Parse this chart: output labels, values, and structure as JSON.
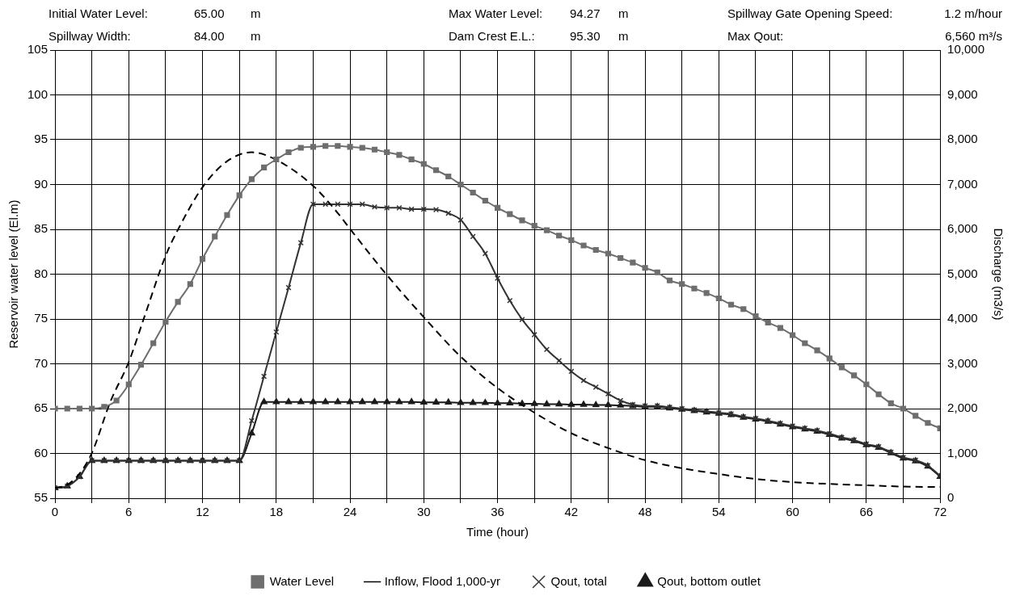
{
  "chart_data": {
    "type": "line",
    "xlabel": "Time (hour)",
    "ylabel": "Reservoir water level (El.m)",
    "y2label": "Discharge (m3/s)",
    "annotations": [
      "Initial Water Level:",
      "65.00",
      "m",
      "Max Water Level:",
      "94.27",
      "m",
      "Spillway Gate Opening Speed:",
      "1.2 m/hour",
      "Spillway Width:",
      "84.00",
      "m",
      "Dam Crest E.L.:",
      "95.30",
      "m",
      "Max Qout:",
      "6,560 m³/s"
    ],
    "x": [
      0,
      1,
      2,
      3,
      4,
      5,
      6,
      7,
      8,
      9,
      10,
      11,
      12,
      13,
      14,
      15,
      16,
      17,
      18,
      19,
      20,
      21,
      22,
      23,
      24,
      25,
      26,
      27,
      28,
      29,
      30,
      31,
      32,
      33,
      34,
      35,
      36,
      37,
      38,
      39,
      40,
      41,
      42,
      43,
      44,
      45,
      46,
      47,
      48,
      49,
      50,
      51,
      52,
      53,
      54,
      55,
      56,
      57,
      58,
      59,
      60,
      61,
      62,
      63,
      64,
      65,
      66,
      67,
      68,
      69,
      70,
      71,
      72
    ],
    "series": [
      {
        "name": "Water Level",
        "color": "#6e6e6e",
        "marker": "square",
        "line_style": "solid",
        "values": [
          65,
          65,
          65,
          65,
          65.2,
          65.9,
          67.7,
          69.9,
          72.3,
          74.7,
          76.9,
          78.9,
          81.7,
          84.2,
          86.6,
          88.8,
          90.6,
          91.9,
          92.8,
          93.6,
          94.1,
          94.2,
          94.3,
          94.3,
          94.2,
          94.1,
          93.9,
          93.6,
          93.3,
          92.8,
          92.3,
          91.6,
          90.9,
          90,
          89.1,
          88.2,
          87.4,
          86.7,
          86,
          85.4,
          84.9,
          84.3,
          83.8,
          83.2,
          82.7,
          82.3,
          81.8,
          81.3,
          80.7,
          80.2,
          79.3,
          78.9,
          78.4,
          77.9,
          77.3,
          76.6,
          76.1,
          75.3,
          74.6,
          74,
          73.2,
          72.3,
          71.5,
          70.6,
          69.6,
          68.7,
          67.7,
          66.6,
          65.6,
          65,
          64.2,
          63.4,
          62.8
        ]
      },
      {
        "name": "Inflow, Flood 1,000-yr",
        "color": "#000000",
        "marker": "none",
        "line_style": "dashed",
        "axis": "y2",
        "x": [
          0,
          1,
          2,
          3,
          4.5,
          6,
          7.3,
          9,
          10,
          12,
          14,
          16,
          18,
          21,
          23.1,
          24,
          27,
          30,
          33,
          36,
          39,
          42,
          45,
          48,
          51,
          54,
          57,
          60,
          63,
          66,
          69,
          72
        ],
        "values": [
          230,
          300,
          550,
          1010,
          2150,
          3040,
          4070,
          5410,
          5990,
          6940,
          7520,
          7720,
          7550,
          6970,
          6330,
          6010,
          4980,
          4040,
          3160,
          2460,
          1910,
          1450,
          1120,
          850,
          670,
          540,
          430,
          360,
          320,
          290,
          260,
          250
        ]
      },
      {
        "name": "Qout, total",
        "color": "#333333",
        "marker": "cross",
        "line_style": "solid",
        "axis": "y2",
        "values": [
          230,
          270,
          480,
          840,
          840,
          840,
          840,
          840,
          840,
          840,
          840,
          840,
          840,
          840,
          840,
          840,
          1730,
          2720,
          3710,
          4700,
          5700,
          6560,
          6560,
          6560,
          6560,
          6560,
          6500,
          6480,
          6480,
          6450,
          6450,
          6440,
          6360,
          6210,
          5840,
          5460,
          4910,
          4410,
          3990,
          3650,
          3320,
          3070,
          2830,
          2630,
          2480,
          2330,
          2180,
          2090,
          2060,
          2060,
          2030,
          2000,
          1970,
          1940,
          1910,
          1880,
          1820,
          1780,
          1730,
          1670,
          1610,
          1560,
          1510,
          1440,
          1360,
          1300,
          1210,
          1150,
          1030,
          910,
          850,
          730,
          500
        ]
      },
      {
        "name": "Qout, bottom outlet",
        "color": "#1a1a1a",
        "marker": "triangle",
        "line_style": "solid",
        "axis": "y2",
        "values": [
          230,
          270,
          480,
          840,
          840,
          840,
          840,
          840,
          840,
          840,
          840,
          840,
          840,
          840,
          840,
          840,
          1450,
          2150,
          2150,
          2150,
          2150,
          2150,
          2150,
          2150,
          2150,
          2150,
          2150,
          2150,
          2150,
          2150,
          2140,
          2140,
          2140,
          2130,
          2130,
          2130,
          2120,
          2120,
          2110,
          2110,
          2100,
          2100,
          2090,
          2090,
          2080,
          2080,
          2070,
          2060,
          2040,
          2040,
          2010,
          1980,
          1950,
          1920,
          1890,
          1860,
          1800,
          1760,
          1710,
          1650,
          1590,
          1540,
          1490,
          1420,
          1340,
          1280,
          1190,
          1130,
          1010,
          890,
          830,
          710,
          480
        ]
      }
    ],
    "xlim": [
      0,
      72
    ],
    "xticks": [
      0,
      {
        "value": 3,
        "label": null
      },
      6,
      {
        "value": 9,
        "label": null
      },
      12,
      {
        "value": 15,
        "label": null
      },
      18,
      {
        "value": 21,
        "label": null
      },
      24,
      {
        "value": 27,
        "label": null
      },
      30,
      {
        "value": 33,
        "label": null
      },
      36,
      {
        "value": 39,
        "label": null
      },
      42,
      {
        "value": 45,
        "label": null
      },
      48,
      {
        "value": 51,
        "label": null
      },
      54,
      {
        "value": 57,
        "label": null
      },
      60,
      {
        "value": 63,
        "label": null
      },
      66,
      {
        "value": 69,
        "label": null
      },
      72
    ],
    "ylim": [
      55,
      105
    ],
    "yticks": [
      55,
      60,
      65,
      70,
      75,
      80,
      85,
      90,
      95,
      100,
      105
    ],
    "y2lim": [
      0,
      10000
    ],
    "y2ticks": [
      0,
      {
        "value": 1000,
        "label": "1,000"
      },
      {
        "value": 2000,
        "label": "2,000"
      },
      {
        "value": 3000,
        "label": "3,000"
      },
      {
        "value": 4000,
        "label": "4,000"
      },
      {
        "value": 5000,
        "label": "5,000"
      },
      {
        "value": 6000,
        "label": "6,000"
      },
      {
        "value": 7000,
        "label": "7,000"
      },
      {
        "value": 8000,
        "label": "8,000"
      },
      {
        "value": 9000,
        "label": "9,000"
      },
      {
        "value": 10000,
        "label": "10,000"
      }
    ],
    "grid": true,
    "legend": "bottom"
  }
}
